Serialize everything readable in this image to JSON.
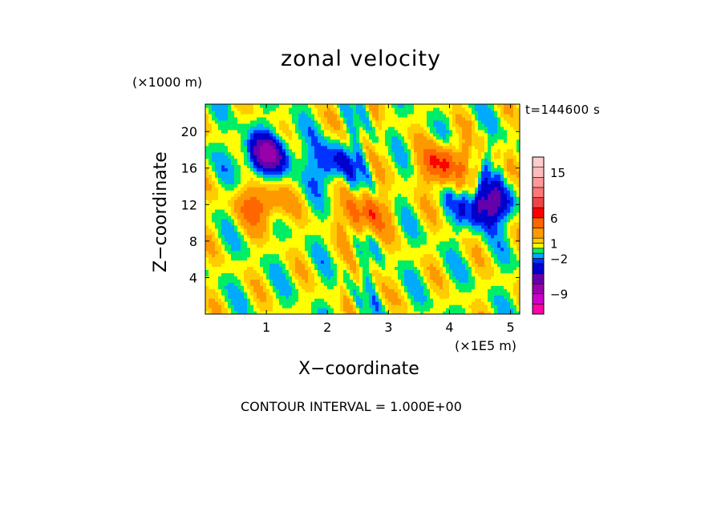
{
  "chart_data": {
    "type": "heatmap",
    "title": "zonal velocity",
    "xlabel": "X−coordinate",
    "ylabel": "Z−coordinate",
    "x_unit": "(×1E5 m)",
    "y_unit": "(×1000 m)",
    "time_label": "t=144600 s",
    "footer": "CONTOUR INTERVAL = 1.000E+00",
    "xlim": [
      0,
      5.15
    ],
    "ylim": [
      0,
      23
    ],
    "x_ticks": [
      1,
      2,
      3,
      4,
      5
    ],
    "y_ticks": [
      4,
      8,
      12,
      16,
      20
    ],
    "x_tick_labels": [
      "1",
      "2",
      "3",
      "4",
      "5"
    ],
    "y_tick_labels": [
      "4",
      "8",
      "12",
      "16",
      "20"
    ],
    "colorbar": {
      "levels": [
        -13,
        -11,
        -9,
        -7,
        -5,
        -3,
        -2,
        -1,
        0,
        1,
        2,
        4,
        6,
        8,
        10,
        12,
        14,
        16,
        18
      ],
      "colors": [
        "#ff00aa",
        "#cc00cc",
        "#9900aa",
        "#6600aa",
        "#0000cc",
        "#0033ff",
        "#00aaff",
        "#00ee66",
        "#ffff00",
        "#ffcc00",
        "#ff9900",
        "#ff6600",
        "#ff0000",
        "#ee4444",
        "#ff7777",
        "#ff9999",
        "#ffbbbb",
        "#ffcccc"
      ],
      "tick_labels": [
        "15",
        "6",
        "1",
        "−2",
        "−9"
      ],
      "tick_values": [
        15,
        6,
        1,
        -2,
        -9
      ]
    },
    "features": [
      {
        "x": 1.0,
        "z": 17.5,
        "value": -7
      },
      {
        "x": 0.9,
        "z": 12.0,
        "value": 5
      },
      {
        "x": 2.1,
        "z": 16.5,
        "value": -4
      },
      {
        "x": 4.6,
        "z": 12.0,
        "value": -7
      },
      {
        "x": 3.9,
        "z": 16.5,
        "value": 6
      },
      {
        "x": 2.6,
        "z": 11.0,
        "value": 5
      }
    ]
  }
}
